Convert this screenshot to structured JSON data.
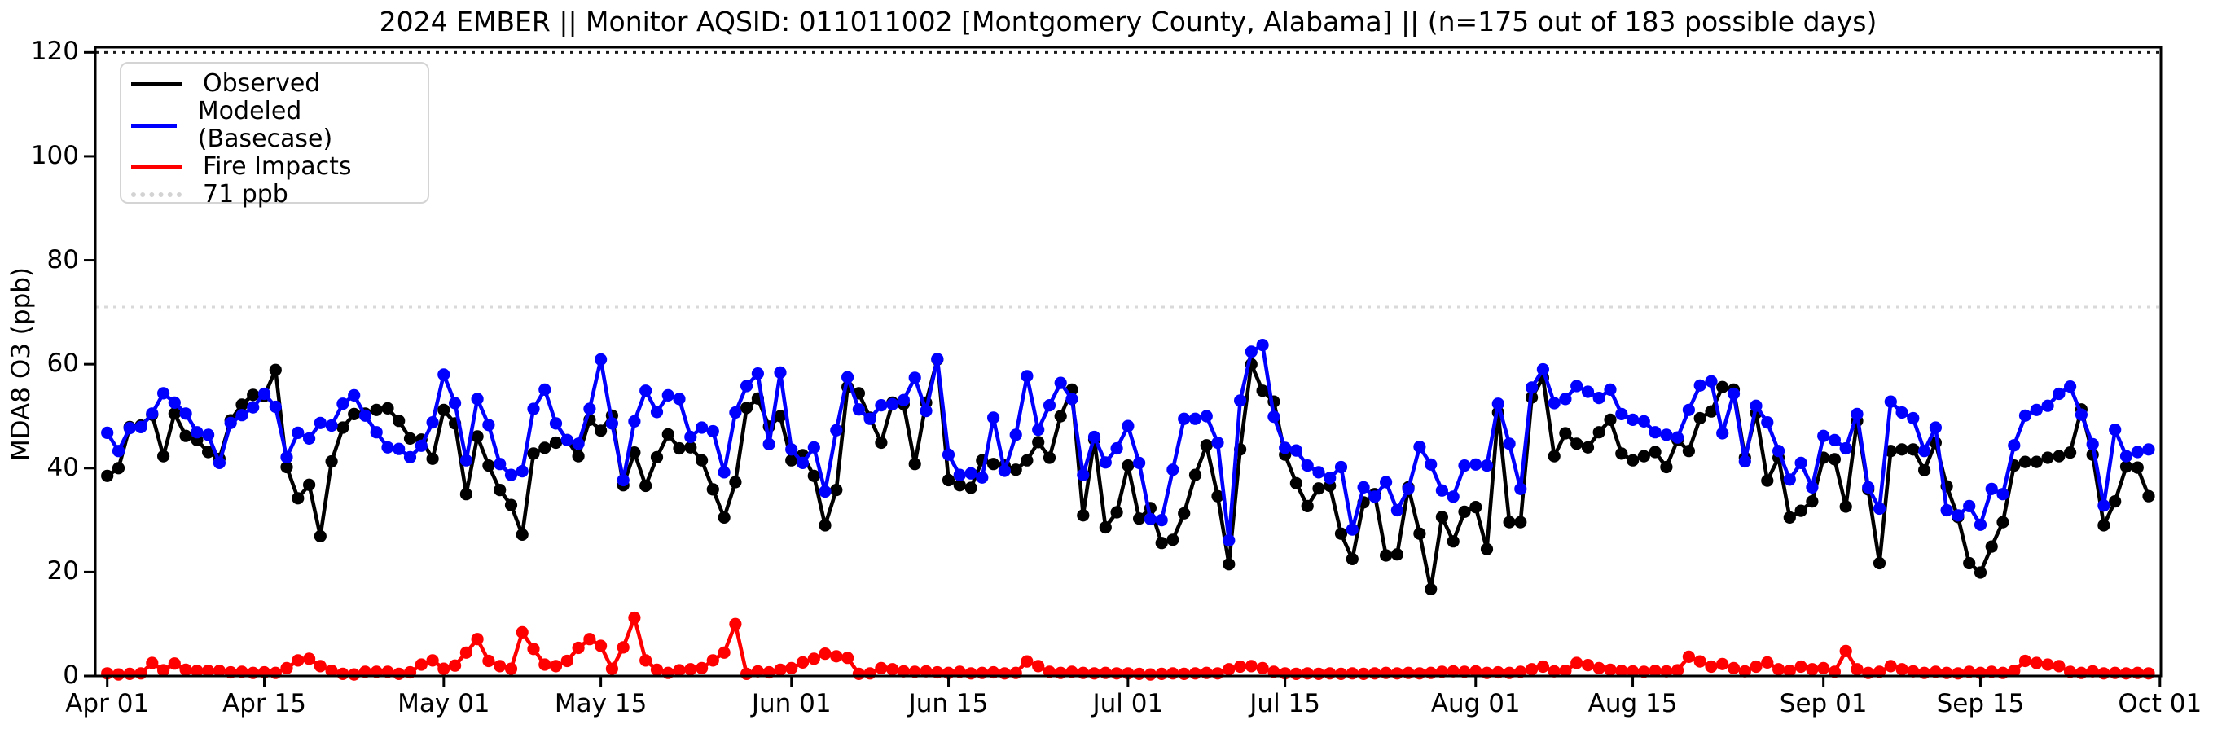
{
  "chart_data": {
    "type": "line",
    "title": "2024 EMBER || Monitor AQSID: 011011002 [Montgomery County, Alabama] || (n=175 out of 183 possible days)",
    "ylabel": "MDA8 O3 (ppb)",
    "ylim": [
      0,
      120
    ],
    "yticks": [
      0,
      20,
      40,
      60,
      80,
      100,
      120
    ],
    "x_start": "Apr 01",
    "x_end": "Oct 01",
    "days_total": 183,
    "grid": false,
    "legend_position": "upper-left",
    "x_ticks": [
      {
        "label": "Apr 01",
        "day": 0
      },
      {
        "label": "Apr 15",
        "day": 14
      },
      {
        "label": "May 01",
        "day": 30
      },
      {
        "label": "May 15",
        "day": 44
      },
      {
        "label": "Jun 01",
        "day": 61
      },
      {
        "label": "Jun 15",
        "day": 75
      },
      {
        "label": "Jul 01",
        "day": 91
      },
      {
        "label": "Jul 15",
        "day": 105
      },
      {
        "label": "Aug 01",
        "day": 122
      },
      {
        "label": "Aug 15",
        "day": 136
      },
      {
        "label": "Sep 01",
        "day": 153
      },
      {
        "label": "Sep 15",
        "day": 167
      },
      {
        "label": "Oct 01",
        "day": 183
      }
    ],
    "reference_lines": [
      {
        "value": 71,
        "label": "71 ppb",
        "color": "#d9d9d9",
        "style": "dotted"
      },
      {
        "value": 120,
        "label": "",
        "color": "#1a1a1a",
        "style": "dotted"
      }
    ],
    "legend": [
      {
        "label": "Observed",
        "color": "#000000",
        "style": "solid"
      },
      {
        "label": "Modeled (Basecase)",
        "color": "#0000ff",
        "style": "solid"
      },
      {
        "label": "Fire Impacts",
        "color": "#ff0000",
        "style": "solid"
      },
      {
        "label": "71 ppb",
        "color": "#d3d3d3",
        "style": "dotted"
      }
    ],
    "series": [
      {
        "name": "Observed",
        "color": "#000000",
        "values": [
          38.5,
          40.0,
          47.9,
          48.2,
          50.3,
          42.3,
          50.5,
          46.2,
          45.4,
          43.1,
          41.8,
          49.2,
          52.2,
          54.1,
          53.9,
          58.9,
          40.2,
          34.2,
          36.8,
          26.9,
          41.3,
          47.8,
          50.4,
          50.5,
          51.2,
          51.5,
          49.1,
          45.7,
          45.5,
          41.8,
          51.2,
          48.6,
          35.0,
          46.1,
          40.5,
          35.8,
          32.9,
          27.2,
          42.8,
          43.9,
          44.9,
          45.4,
          42.3,
          49.3,
          47.2,
          50.1,
          36.7,
          43.0,
          36.6,
          42.1,
          46.5,
          43.8,
          44.0,
          41.5,
          35.9,
          30.5,
          37.3,
          51.6,
          53.4,
          48.0,
          50.0,
          41.5,
          42.5,
          38.5,
          29.0,
          35.8,
          55.6,
          54.4,
          49.7,
          44.9,
          52.6,
          52.3,
          40.8,
          52.6,
          60.9,
          37.7,
          36.7,
          36.2,
          41.5,
          40.8,
          40.5,
          39.7,
          41.5,
          45.0,
          42.0,
          50.0,
          55.1,
          30.9,
          45.5,
          28.6,
          31.5,
          40.5,
          30.3,
          32.3,
          25.6,
          26.2,
          31.3,
          38.7,
          44.4,
          34.6,
          21.5,
          43.6,
          60.0,
          54.9,
          52.8,
          42.6,
          37.1,
          32.7,
          36.1,
          36.6,
          27.4,
          22.5,
          33.4,
          35.0,
          23.2,
          23.4,
          36.3,
          27.4,
          16.7,
          30.6,
          25.9,
          31.6,
          32.5,
          24.4,
          50.7,
          29.6,
          29.6,
          53.6,
          57.4,
          42.3,
          46.7,
          44.7,
          44.0,
          46.9,
          49.3,
          42.8,
          41.5,
          42.3,
          43.1,
          40.2,
          45.4,
          43.3,
          49.6,
          50.9,
          55.6,
          55.1,
          42.0,
          50.6,
          37.6,
          42.0,
          30.5,
          31.8,
          33.6,
          42.0,
          41.7,
          32.6,
          49.1,
          35.9,
          21.7,
          43.3,
          43.6,
          43.6,
          39.6,
          44.9,
          36.5,
          30.6,
          21.7,
          19.9,
          24.9,
          29.6,
          40.5,
          41.2,
          41.2,
          42.0,
          42.3,
          43.0,
          51.3,
          42.6,
          29.0,
          33.6,
          40.3,
          40.1,
          34.6
        ]
      },
      {
        "name": "Modeled (Basecase)",
        "color": "#0000ff",
        "values": [
          46.8,
          43.3,
          47.7,
          47.9,
          50.5,
          54.4,
          52.6,
          50.5,
          46.9,
          46.4,
          41.0,
          48.7,
          50.2,
          51.7,
          54.3,
          51.8,
          42.1,
          46.8,
          45.7,
          48.7,
          48.2,
          52.4,
          54.0,
          50.1,
          46.9,
          44.0,
          43.7,
          42.1,
          44.3,
          48.8,
          58.0,
          52.5,
          41.5,
          53.3,
          48.3,
          40.8,
          38.7,
          39.4,
          51.4,
          55.1,
          48.6,
          45.4,
          44.7,
          51.4,
          60.9,
          48.6,
          37.7,
          49.0,
          54.9,
          50.8,
          54.0,
          53.3,
          46.0,
          47.8,
          47.1,
          39.2,
          50.7,
          55.8,
          58.2,
          44.6,
          58.4,
          43.6,
          41.0,
          44.0,
          35.5,
          47.3,
          57.5,
          51.3,
          49.5,
          52.1,
          52.3,
          53.1,
          57.4,
          51.0,
          61.0,
          42.6,
          38.7,
          39.0,
          38.2,
          49.7,
          39.5,
          46.4,
          57.7,
          47.4,
          52.1,
          56.4,
          53.3,
          38.7,
          46.0,
          41.1,
          43.8,
          48.1,
          41.0,
          30.2,
          30.0,
          39.7,
          49.5,
          49.5,
          50.0,
          44.9,
          26.1,
          53.0,
          62.4,
          63.7,
          49.9,
          43.9,
          43.4,
          40.5,
          39.2,
          38.1,
          40.2,
          28.2,
          36.3,
          34.5,
          37.3,
          31.9,
          36.0,
          44.1,
          40.7,
          35.7,
          34.5,
          40.5,
          40.7,
          40.5,
          52.4,
          44.7,
          36.0,
          55.5,
          59.0,
          52.5,
          53.3,
          55.8,
          54.7,
          53.5,
          55.1,
          50.4,
          49.3,
          49.0,
          46.9,
          46.4,
          45.9,
          51.2,
          55.9,
          56.7,
          46.7,
          54.3,
          41.3,
          52.0,
          48.8,
          43.3,
          37.8,
          41.0,
          36.3,
          46.2,
          45.4,
          43.8,
          50.4,
          36.3,
          32.2,
          52.8,
          50.7,
          49.6,
          43.3,
          47.8,
          31.9,
          30.9,
          32.7,
          29.1,
          36.0,
          35.0,
          44.4,
          50.1,
          51.2,
          52.0,
          54.3,
          55.7,
          50.3,
          44.6,
          32.8,
          47.4,
          42.3,
          43.1,
          43.6
        ]
      },
      {
        "name": "Fire Impacts",
        "color": "#ff0000",
        "values": [
          0.5,
          0.3,
          0.4,
          0.5,
          2.5,
          1.1,
          2.4,
          1.2,
          1.0,
          1.0,
          1.0,
          0.7,
          0.8,
          0.6,
          0.7,
          0.6,
          1.5,
          3.0,
          3.3,
          1.9,
          1.0,
          0.4,
          0.3,
          0.8,
          0.8,
          0.8,
          0.4,
          0.7,
          2.2,
          3.0,
          1.4,
          2.0,
          4.5,
          7.1,
          2.9,
          1.9,
          1.4,
          8.4,
          5.2,
          2.2,
          1.9,
          2.9,
          5.4,
          7.1,
          5.8,
          1.4,
          5.5,
          11.2,
          3.0,
          1.2,
          0.6,
          1.1,
          1.3,
          1.5,
          3.0,
          4.5,
          10.0,
          0.4,
          0.9,
          0.7,
          1.2,
          1.5,
          2.6,
          3.3,
          4.3,
          3.8,
          3.5,
          0.4,
          0.5,
          1.5,
          1.3,
          0.9,
          0.8,
          0.9,
          0.7,
          0.6,
          0.8,
          0.5,
          0.6,
          0.7,
          0.5,
          0.6,
          2.8,
          1.9,
          0.8,
          0.6,
          0.8,
          0.6,
          0.5,
          0.6,
          0.5,
          0.5,
          0.4,
          0.3,
          0.4,
          0.5,
          0.4,
          0.5,
          0.6,
          0.5,
          1.3,
          1.8,
          1.9,
          1.5,
          0.8,
          0.5,
          0.4,
          0.5,
          0.4,
          0.5,
          0.4,
          0.5,
          0.4,
          0.5,
          0.6,
          0.5,
          0.6,
          0.5,
          0.6,
          0.8,
          0.9,
          0.8,
          0.9,
          0.6,
          0.7,
          0.6,
          0.8,
          1.3,
          1.8,
          0.9,
          1.0,
          2.5,
          2.1,
          1.5,
          1.2,
          1.0,
          0.9,
          0.8,
          1.0,
          0.9,
          1.1,
          3.7,
          2.8,
          1.8,
          2.3,
          1.5,
          0.9,
          1.8,
          2.6,
          1.3,
          1.0,
          1.8,
          1.3,
          1.5,
          0.8,
          4.8,
          1.3,
          0.6,
          0.8,
          1.9,
          1.3,
          0.9,
          0.6,
          0.8,
          0.6,
          0.5,
          0.8,
          0.6,
          0.8,
          0.6,
          1.0,
          2.9,
          2.5,
          2.2,
          1.9,
          0.8,
          0.6,
          0.9,
          0.5,
          0.6,
          0.5,
          0.6,
          0.5
        ]
      }
    ]
  }
}
